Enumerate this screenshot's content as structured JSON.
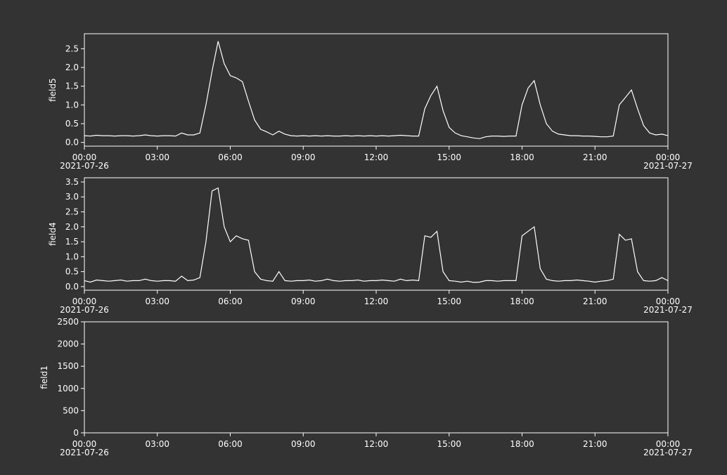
{
  "chart_data": [
    {
      "type": "line",
      "ylabel": "field5",
      "x": [
        0,
        0.25,
        0.5,
        0.75,
        1,
        1.25,
        1.5,
        1.75,
        2,
        2.25,
        2.5,
        2.75,
        3,
        3.25,
        3.5,
        3.75,
        4,
        4.25,
        4.5,
        4.75,
        5,
        5.25,
        5.5,
        5.75,
        6,
        6.25,
        6.5,
        6.75,
        7,
        7.25,
        7.5,
        7.75,
        8,
        8.25,
        8.5,
        8.75,
        9,
        9.25,
        9.5,
        9.75,
        10,
        10.25,
        10.5,
        10.75,
        11,
        11.25,
        11.5,
        11.75,
        12,
        12.25,
        12.5,
        12.75,
        13,
        13.25,
        13.5,
        13.75,
        14,
        14.25,
        14.5,
        14.75,
        15,
        15.25,
        15.5,
        15.75,
        16,
        16.25,
        16.5,
        16.75,
        17,
        17.25,
        17.5,
        17.75,
        18,
        18.25,
        18.5,
        18.75,
        19,
        19.25,
        19.5,
        19.75,
        20,
        20.25,
        20.5,
        20.75,
        21,
        21.25,
        21.5,
        21.75,
        22,
        22.25,
        22.5,
        22.75,
        23,
        23.25,
        23.5,
        23.75,
        24
      ],
      "series": [
        {
          "name": "field5",
          "color": "#ffffff",
          "values": [
            0.18,
            0.17,
            0.19,
            0.18,
            0.18,
            0.17,
            0.18,
            0.18,
            0.17,
            0.18,
            0.2,
            0.18,
            0.17,
            0.18,
            0.18,
            0.17,
            0.25,
            0.2,
            0.2,
            0.25,
            1.0,
            1.9,
            2.7,
            2.1,
            1.78,
            1.72,
            1.62,
            1.1,
            0.6,
            0.35,
            0.28,
            0.2,
            0.3,
            0.22,
            0.18,
            0.17,
            0.18,
            0.17,
            0.18,
            0.17,
            0.18,
            0.17,
            0.17,
            0.18,
            0.17,
            0.18,
            0.17,
            0.18,
            0.17,
            0.18,
            0.17,
            0.18,
            0.19,
            0.18,
            0.17,
            0.17,
            0.9,
            1.25,
            1.5,
            0.85,
            0.4,
            0.25,
            0.18,
            0.15,
            0.12,
            0.1,
            0.15,
            0.17,
            0.17,
            0.16,
            0.17,
            0.17,
            1.0,
            1.45,
            1.65,
            1.0,
            0.5,
            0.3,
            0.22,
            0.2,
            0.18,
            0.18,
            0.17,
            0.17,
            0.16,
            0.15,
            0.15,
            0.17,
            1.0,
            1.2,
            1.4,
            0.9,
            0.45,
            0.25,
            0.2,
            0.22,
            0.18
          ]
        }
      ],
      "xlim": [
        0,
        24
      ],
      "xticks": [
        {
          "value": 0,
          "label": "00:00"
        },
        {
          "value": 3,
          "label": "03:00"
        },
        {
          "value": 6,
          "label": "06:00"
        },
        {
          "value": 9,
          "label": "09:00"
        },
        {
          "value": 12,
          "label": "12:00"
        },
        {
          "value": 15,
          "label": "15:00"
        },
        {
          "value": 18,
          "label": "18:00"
        },
        {
          "value": 21,
          "label": "21:00"
        },
        {
          "value": 24,
          "label": "00:00"
        }
      ],
      "xtick_dates": [
        {
          "value": 0,
          "label": "2021-07-26"
        },
        {
          "value": 24,
          "label": "2021-07-27"
        }
      ],
      "ylim": [
        -0.1,
        2.9
      ],
      "yticks": [
        {
          "value": 0,
          "label": "0.0"
        },
        {
          "value": 0.5,
          "label": "0.5"
        },
        {
          "value": 1,
          "label": "1.0"
        },
        {
          "value": 1.5,
          "label": "1.5"
        },
        {
          "value": 2,
          "label": "2.0"
        },
        {
          "value": 2.5,
          "label": "2.5"
        }
      ]
    },
    {
      "type": "line",
      "ylabel": "field4",
      "x": [
        0,
        0.25,
        0.5,
        0.75,
        1,
        1.25,
        1.5,
        1.75,
        2,
        2.25,
        2.5,
        2.75,
        3,
        3.25,
        3.5,
        3.75,
        4,
        4.25,
        4.5,
        4.75,
        5,
        5.25,
        5.5,
        5.75,
        6,
        6.25,
        6.5,
        6.75,
        7,
        7.25,
        7.5,
        7.75,
        8,
        8.25,
        8.5,
        8.75,
        9,
        9.25,
        9.5,
        9.75,
        10,
        10.25,
        10.5,
        10.75,
        11,
        11.25,
        11.5,
        11.75,
        12,
        12.25,
        12.5,
        12.75,
        13,
        13.25,
        13.5,
        13.75,
        14,
        14.25,
        14.5,
        14.75,
        15,
        15.25,
        15.5,
        15.75,
        16,
        16.25,
        16.5,
        16.75,
        17,
        17.25,
        17.5,
        17.75,
        18,
        18.25,
        18.5,
        18.75,
        19,
        19.25,
        19.5,
        19.75,
        20,
        20.25,
        20.5,
        20.75,
        21,
        21.25,
        21.5,
        21.75,
        22,
        22.25,
        22.5,
        22.75,
        23,
        23.25,
        23.5,
        23.75,
        24
      ],
      "series": [
        {
          "name": "field4",
          "color": "#ffffff",
          "values": [
            0.2,
            0.15,
            0.22,
            0.2,
            0.18,
            0.2,
            0.22,
            0.18,
            0.2,
            0.2,
            0.25,
            0.2,
            0.18,
            0.2,
            0.2,
            0.18,
            0.35,
            0.2,
            0.22,
            0.3,
            1.5,
            3.2,
            3.3,
            2.0,
            1.5,
            1.7,
            1.6,
            1.55,
            0.5,
            0.25,
            0.2,
            0.18,
            0.5,
            0.2,
            0.18,
            0.2,
            0.2,
            0.22,
            0.18,
            0.2,
            0.25,
            0.2,
            0.18,
            0.2,
            0.2,
            0.22,
            0.18,
            0.2,
            0.2,
            0.22,
            0.2,
            0.18,
            0.25,
            0.2,
            0.22,
            0.2,
            1.7,
            1.65,
            1.85,
            0.5,
            0.2,
            0.18,
            0.15,
            0.18,
            0.14,
            0.15,
            0.2,
            0.2,
            0.18,
            0.2,
            0.2,
            0.2,
            1.7,
            1.85,
            2.0,
            0.6,
            0.25,
            0.2,
            0.18,
            0.2,
            0.2,
            0.22,
            0.2,
            0.18,
            0.15,
            0.18,
            0.2,
            0.25,
            1.75,
            1.55,
            1.6,
            0.5,
            0.2,
            0.18,
            0.2,
            0.3,
            0.2
          ]
        }
      ],
      "xlim": [
        0,
        24
      ],
      "xticks": [
        {
          "value": 0,
          "label": "00:00"
        },
        {
          "value": 3,
          "label": "03:00"
        },
        {
          "value": 6,
          "label": "06:00"
        },
        {
          "value": 9,
          "label": "09:00"
        },
        {
          "value": 12,
          "label": "12:00"
        },
        {
          "value": 15,
          "label": "15:00"
        },
        {
          "value": 18,
          "label": "18:00"
        },
        {
          "value": 21,
          "label": "21:00"
        },
        {
          "value": 24,
          "label": "00:00"
        }
      ],
      "xtick_dates": [
        {
          "value": 0,
          "label": "2021-07-26"
        },
        {
          "value": 24,
          "label": "2021-07-27"
        }
      ],
      "ylim": [
        -0.12,
        3.64
      ],
      "yticks": [
        {
          "value": 0,
          "label": "0.0"
        },
        {
          "value": 0.5,
          "label": "0.5"
        },
        {
          "value": 1,
          "label": "1.0"
        },
        {
          "value": 1.5,
          "label": "1.5"
        },
        {
          "value": 2,
          "label": "2.0"
        },
        {
          "value": 2.5,
          "label": "2.5"
        },
        {
          "value": 3,
          "label": "3.0"
        },
        {
          "value": 3.5,
          "label": "3.5"
        }
      ]
    },
    {
      "type": "line",
      "ylabel": "field1",
      "x": [],
      "series": [
        {
          "name": "field1",
          "color": "#ffffff",
          "values": []
        }
      ],
      "xlim": [
        0,
        24
      ],
      "xticks": [
        {
          "value": 0,
          "label": "00:00"
        },
        {
          "value": 3,
          "label": "03:00"
        },
        {
          "value": 6,
          "label": "06:00"
        },
        {
          "value": 9,
          "label": "09:00"
        },
        {
          "value": 12,
          "label": "12:00"
        },
        {
          "value": 15,
          "label": "15:00"
        },
        {
          "value": 18,
          "label": "18:00"
        },
        {
          "value": 21,
          "label": "21:00"
        },
        {
          "value": 24,
          "label": "00:00"
        }
      ],
      "xtick_dates": [
        {
          "value": 0,
          "label": "2021-07-26"
        },
        {
          "value": 24,
          "label": "2021-07-27"
        }
      ],
      "ylim": [
        0,
        2500
      ],
      "yticks": [
        0,
        500,
        1000,
        1500,
        2000,
        2500
      ]
    }
  ]
}
